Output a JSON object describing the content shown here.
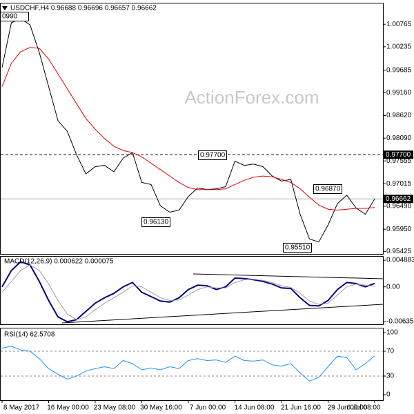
{
  "chart_data": [
    {
      "type": "line",
      "title": "USDCHF,H4 0.96688 0.96696 0.96657 0.96662",
      "watermark": "ActionForex.com",
      "categories": [
        "8 May 2017",
        null,
        null,
        null,
        null,
        "16 May 00:00",
        null,
        null,
        null,
        null,
        "23 May 08:00",
        null,
        null,
        null,
        null,
        "30 May 16:00",
        null,
        null,
        null,
        null,
        "7 Jun 00:00",
        null,
        null,
        null,
        null,
        "14 Jun 08:00",
        null,
        null,
        null,
        null,
        "21 Jun 16:00",
        null,
        null,
        null,
        null,
        "29 Jun 00:00",
        null,
        null,
        null,
        null,
        "6 Jul 08:00"
      ],
      "series": [
        {
          "color": "#000000",
          "values": [
            0.9975,
            1.008,
            1.009,
            1.0075,
            1.001,
            0.993,
            0.985,
            0.9825,
            0.977,
            0.9725,
            0.9742,
            0.9745,
            0.973,
            0.9762,
            0.9775,
            0.9705,
            0.97,
            0.965,
            0.9635,
            0.964,
            0.9672,
            0.9692,
            0.9688,
            0.969,
            0.9695,
            0.9755,
            0.9745,
            0.9748,
            0.9742,
            0.972,
            0.9708,
            0.9712,
            0.963,
            0.9572,
            0.9565,
            0.9605,
            0.9655,
            0.9675,
            0.9645,
            0.963,
            0.96662
          ]
        },
        {
          "color": "#e00000",
          "values": [
            0.993,
            0.9985,
            1.0012,
            1.0022,
            1.002,
            0.9995,
            0.996,
            0.9925,
            0.989,
            0.9855,
            0.983,
            0.9808,
            0.979,
            0.978,
            0.9775,
            0.9765,
            0.975,
            0.9735,
            0.972,
            0.9705,
            0.9693,
            0.9688,
            0.9688,
            0.9688,
            0.969,
            0.97,
            0.971,
            0.9717,
            0.972,
            0.9718,
            0.9712,
            0.9705,
            0.969,
            0.967,
            0.9652,
            0.9642,
            0.964,
            0.9642,
            0.9644,
            0.9644,
            0.9646
          ]
        }
      ],
      "annotations": [
        "0990",
        "0.96130",
        "0.97700",
        "0.96870",
        "0.95510"
      ],
      "hlines": [
        {
          "value": 0.977,
          "label": "0.97700"
        },
        {
          "value": 0.96662,
          "label": "0.96662"
        }
      ],
      "ylim": [
        0.9537,
        1.0127
      ],
      "yticks": [
        1.00765,
        1.00235,
        0.99685,
        {
          "value": 0.9916,
          "label": "0.99160"
        },
        {
          "value": 0.9862,
          "label": "0.98620"
        },
        {
          "value": 0.9809,
          "label": "0.98090"
        },
        0.97555,
        0.97015,
        {
          "value": 0.9649,
          "label": "0.96490"
        },
        {
          "value": 0.9595,
          "label": "0.95950"
        },
        0.95425
      ]
    },
    {
      "type": "line",
      "title": "MACD(12,26,9) 0.000622 0.000075",
      "series": [
        {
          "color": "#000080",
          "values": [
            0,
            0.003,
            0.0046,
            0.004,
            0.001,
            -0.0025,
            -0.0055,
            -0.0064,
            -0.006,
            -0.0045,
            -0.003,
            -0.002,
            -0.0012,
            0,
            0.0008,
            -0.001,
            -0.0018,
            -0.0026,
            -0.0028,
            -0.002,
            -0.0005,
            0.0003,
            0.0002,
            -0.0005,
            0,
            0.0016,
            0.0015,
            0.0013,
            0.001,
            0.0005,
            -0.0002,
            -0.0003,
            -0.002,
            -0.0034,
            -0.0035,
            -0.0025,
            -0.0005,
            0.0008,
            0.0006,
            0,
            0.000622
          ]
        },
        {
          "color": "#a0a0a0",
          "values": [
            -0.001,
            0.001,
            0.003,
            0.004,
            0.003,
            0.0005,
            -0.0025,
            -0.005,
            -0.006,
            -0.0055,
            -0.0042,
            -0.003,
            -0.002,
            -0.001,
            0.0002,
            0,
            -0.001,
            -0.002,
            -0.0025,
            -0.0024,
            -0.0015,
            -0.0005,
            0,
            -0.0002,
            -0.0002,
            0.0008,
            0.0013,
            0.0014,
            0.0012,
            0.0008,
            0.0002,
            -0.0001,
            -0.0012,
            -0.0026,
            -0.0032,
            -0.003,
            -0.0015,
            0,
            0.0005,
            0.0003,
            7.5e-05
          ]
        }
      ],
      "ylim": [
        -0.006865,
        0.005649
      ],
      "yticks": [
        0.004883,
        {
          "value": 0,
          "label": "0.00"
        },
        -0.006354
      ]
    },
    {
      "type": "line",
      "title": "RSI(14) 62.5708",
      "series": [
        {
          "color": "#1e90ff",
          "values": [
            75,
            78,
            72,
            70,
            58,
            42,
            33,
            25,
            30,
            38,
            42,
            45,
            42,
            55,
            50,
            40,
            43,
            40,
            45,
            42,
            55,
            58,
            55,
            56,
            52,
            62,
            55,
            54,
            56,
            48,
            46,
            50,
            35,
            22,
            28,
            45,
            62,
            60,
            40,
            50,
            62.5708
          ]
        }
      ],
      "ylim": [
        -8.9,
        107.8
      ],
      "yticks": [
        100,
        70,
        30,
        0
      ],
      "dashed_levels": [
        70,
        30
      ]
    }
  ]
}
